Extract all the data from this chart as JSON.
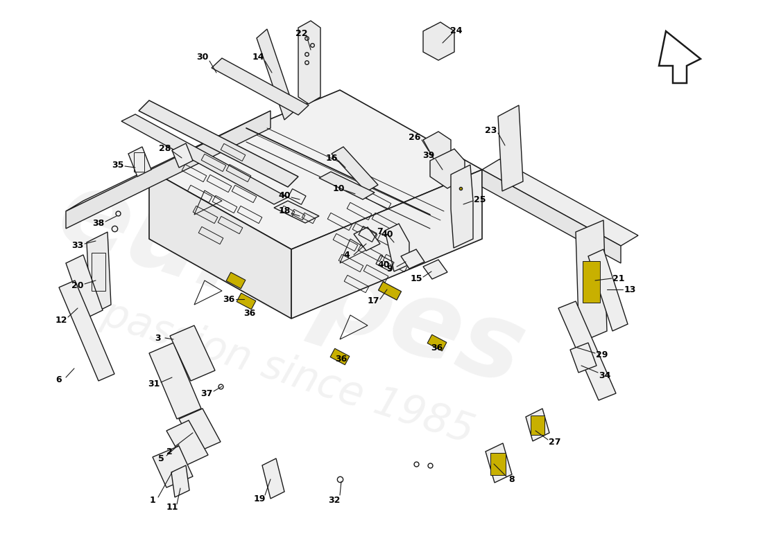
{
  "background_color": "#ffffff",
  "line_color": "#1a1a1a",
  "watermark_color": "#d8d8d8",
  "highlight_color": "#c8b000",
  "fig_w": 11.0,
  "fig_h": 8.0,
  "dpi": 100
}
